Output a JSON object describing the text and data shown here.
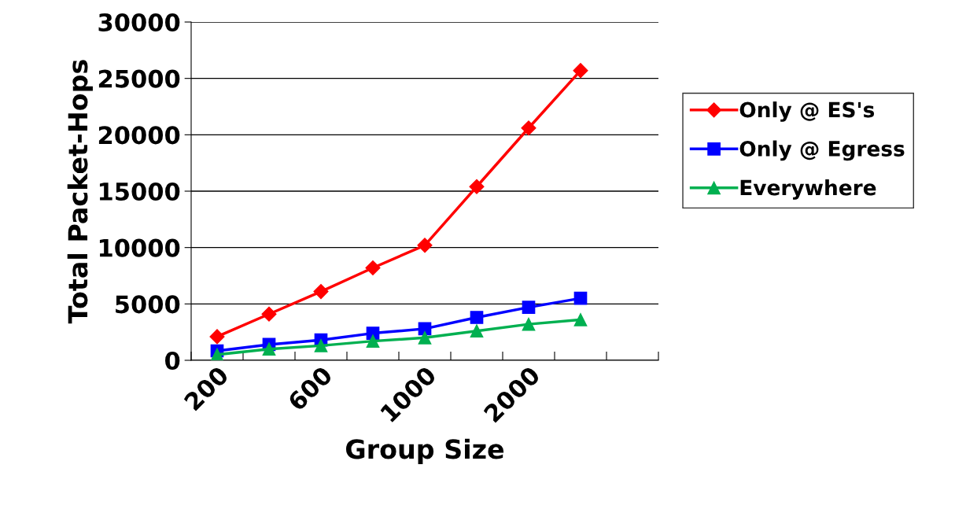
{
  "chart_data": {
    "type": "line",
    "xlabel": "Group Size",
    "ylabel": "Total Packet-Hops",
    "categories": [
      "200",
      null,
      "600",
      null,
      "1000",
      null,
      "2000",
      null,
      null
    ],
    "series": [
      {
        "name": "Only @ ES's",
        "color": "#ff0000",
        "marker": "diamond",
        "values": [
          2100,
          4100,
          6100,
          8200,
          10200,
          15400,
          20600,
          25700,
          null
        ]
      },
      {
        "name": "Only @ Egress",
        "color": "#0000ff",
        "marker": "square",
        "values": [
          840,
          1400,
          1800,
          2400,
          2800,
          3800,
          4700,
          5500,
          null
        ]
      },
      {
        "name": "Everywhere",
        "color": "#00b050",
        "marker": "triangle",
        "values": [
          500,
          1000,
          1300,
          1700,
          2000,
          2600,
          3200,
          3600,
          null
        ]
      }
    ],
    "ylim": [
      0,
      30000
    ],
    "yticks": [
      0,
      5000,
      10000,
      15000,
      20000,
      25000,
      30000
    ],
    "grid": "y",
    "legend": "right"
  }
}
